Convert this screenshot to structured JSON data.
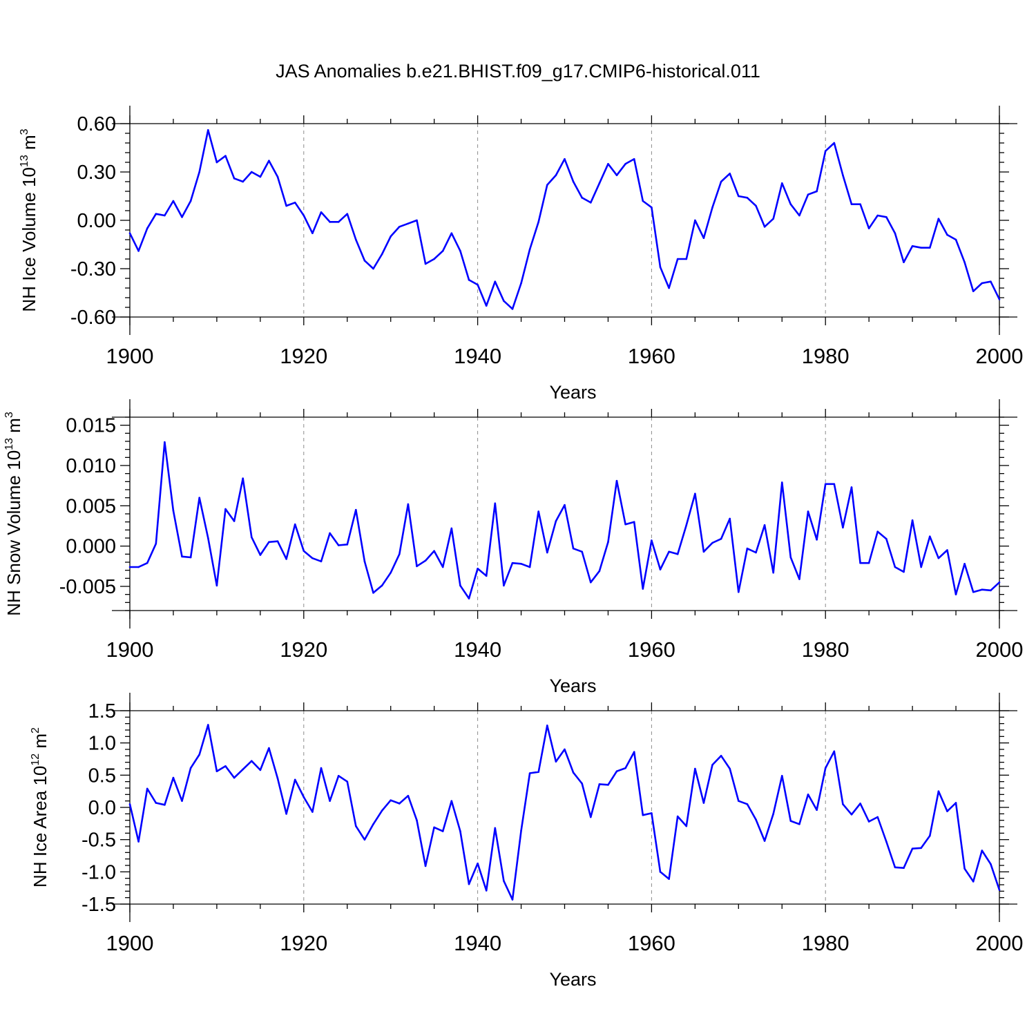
{
  "title": "JAS Anomalies b.e21.BHIST.f09_g17.CMIP6-historical.011",
  "chart_data": [
    {
      "type": "line",
      "name": "ice-volume",
      "ylabel": {
        "text": "NH Ice Volume 10",
        "exp1": "13",
        "mid": " m",
        "exp2": "3"
      },
      "xlabel": "Years",
      "xlim": [
        1900,
        2000
      ],
      "ylim": [
        -0.6,
        0.6
      ],
      "yticks": [
        -0.6,
        -0.3,
        0.0,
        0.3,
        0.6
      ],
      "ytick_labels": [
        "-0.60",
        "-0.30",
        "0.00",
        "0.30",
        "0.60"
      ],
      "xticks": [
        1900,
        1920,
        1940,
        1960,
        1980,
        2000
      ],
      "xtick_labels": [
        "1900",
        "1920",
        "1940",
        "1960",
        "1980",
        "2000"
      ],
      "x_start": 1900,
      "color": "#0000ff",
      "values": [
        -0.08,
        -0.19,
        -0.05,
        0.04,
        0.03,
        0.12,
        0.02,
        0.12,
        0.3,
        0.56,
        0.36,
        0.4,
        0.26,
        0.24,
        0.3,
        0.27,
        0.37,
        0.27,
        0.09,
        0.11,
        0.03,
        -0.08,
        0.05,
        -0.01,
        -0.01,
        0.04,
        -0.12,
        -0.25,
        -0.3,
        -0.21,
        -0.1,
        -0.04,
        -0.02,
        0.0,
        -0.27,
        -0.24,
        -0.19,
        -0.08,
        -0.19,
        -0.37,
        -0.4,
        -0.53,
        -0.38,
        -0.5,
        -0.55,
        -0.39,
        -0.18,
        -0.01,
        0.22,
        0.28,
        0.38,
        0.24,
        0.14,
        0.11,
        0.23,
        0.35,
        0.28,
        0.35,
        0.38,
        0.12,
        0.08,
        -0.29,
        -0.42,
        -0.24,
        -0.24,
        0.0,
        -0.11,
        0.08,
        0.24,
        0.29,
        0.15,
        0.14,
        0.09,
        -0.04,
        0.01,
        0.23,
        0.1,
        0.03,
        0.16,
        0.18,
        0.43,
        0.48,
        0.28,
        0.1,
        0.1,
        -0.05,
        0.03,
        0.02,
        -0.08,
        -0.26,
        -0.16,
        -0.17,
        -0.17,
        0.01,
        -0.09,
        -0.12,
        -0.26,
        -0.44,
        -0.39,
        -0.38,
        -0.49
      ]
    },
    {
      "type": "line",
      "name": "snow-volume",
      "ylabel": {
        "text": "NH Snow Volume 10",
        "exp1": "13",
        "mid": " m",
        "exp2": "3"
      },
      "xlabel": "Years",
      "xlim": [
        1900,
        2000
      ],
      "ylim": [
        -0.008,
        0.016
      ],
      "yticks": [
        -0.005,
        0.0,
        0.005,
        0.01,
        0.015
      ],
      "ytick_labels": [
        "-0.005",
        "0.000",
        "0.005",
        "0.010",
        "0.015"
      ],
      "xticks": [
        1900,
        1920,
        1940,
        1960,
        1980,
        2000
      ],
      "xtick_labels": [
        "1900",
        "1920",
        "1940",
        "1960",
        "1980",
        "2000"
      ],
      "x_start": 1900,
      "color": "#0000ff",
      "values": [
        -0.0026,
        -0.0026,
        -0.0021,
        0.0003,
        0.0129,
        0.0044,
        -0.0013,
        -0.0014,
        0.006,
        0.001,
        -0.0049,
        0.0046,
        0.0031,
        0.0084,
        0.0011,
        -0.0011,
        0.0005,
        0.0006,
        -0.0016,
        0.0027,
        -0.0006,
        -0.0015,
        -0.0019,
        0.0016,
        0.0001,
        0.0002,
        0.0045,
        -0.0019,
        -0.0058,
        -0.0049,
        -0.0033,
        -0.001,
        0.0052,
        -0.0025,
        -0.0018,
        -0.0006,
        -0.0026,
        0.0022,
        -0.0049,
        -0.0065,
        -0.0028,
        -0.0037,
        0.0053,
        -0.0049,
        -0.0021,
        -0.0022,
        -0.0026,
        0.0043,
        -0.0008,
        0.0031,
        0.0051,
        -0.0003,
        -0.0007,
        -0.0045,
        -0.0031,
        0.0005,
        0.0081,
        0.0027,
        0.003,
        -0.0053,
        0.0007,
        -0.0029,
        -0.0007,
        -0.001,
        0.0026,
        0.0065,
        -0.0007,
        0.0004,
        0.0009,
        0.0034,
        -0.0057,
        -0.0003,
        -0.0008,
        0.0026,
        -0.0033,
        0.0079,
        -0.0014,
        -0.0041,
        0.0043,
        0.0008,
        0.0077,
        0.0077,
        0.0023,
        0.0073,
        -0.0021,
        -0.0021,
        0.0018,
        0.0009,
        -0.0026,
        -0.0032,
        0.0032,
        -0.0026,
        0.0012,
        -0.0015,
        -0.0005,
        -0.006,
        -0.0022,
        -0.0057,
        -0.0054,
        -0.0055,
        -0.0045
      ]
    },
    {
      "type": "line",
      "name": "ice-area",
      "ylabel": {
        "text": "NH Ice Area 10",
        "exp1": "12",
        "mid": " m",
        "exp2": "2"
      },
      "xlabel": "Years",
      "xlim": [
        1900,
        2000
      ],
      "ylim": [
        -1.5,
        1.5
      ],
      "yticks": [
        -1.5,
        -1.0,
        -0.5,
        0.0,
        0.5,
        1.0,
        1.5
      ],
      "ytick_labels": [
        "-1.5",
        "-1.0",
        "-0.5",
        "0.0",
        "0.5",
        "1.0",
        "1.5"
      ],
      "xticks": [
        1900,
        1920,
        1940,
        1960,
        1980,
        2000
      ],
      "xtick_labels": [
        "1900",
        "1920",
        "1940",
        "1960",
        "1980",
        "2000"
      ],
      "x_start": 1900,
      "color": "#0000ff",
      "values": [
        0.05,
        -0.53,
        0.29,
        0.07,
        0.04,
        0.46,
        0.1,
        0.61,
        0.82,
        1.28,
        0.56,
        0.64,
        0.46,
        0.59,
        0.72,
        0.58,
        0.92,
        0.45,
        -0.1,
        0.43,
        0.16,
        -0.07,
        0.61,
        0.1,
        0.49,
        0.4,
        -0.29,
        -0.5,
        -0.26,
        -0.05,
        0.11,
        0.06,
        0.18,
        -0.2,
        -0.91,
        -0.31,
        -0.37,
        0.1,
        -0.37,
        -1.19,
        -0.87,
        -1.29,
        -0.32,
        -1.14,
        -1.43,
        -0.36,
        0.53,
        0.55,
        1.27,
        0.71,
        0.9,
        0.54,
        0.37,
        -0.15,
        0.36,
        0.35,
        0.56,
        0.61,
        0.86,
        -0.12,
        -0.09,
        -1.0,
        -1.11,
        -0.14,
        -0.29,
        0.6,
        0.07,
        0.66,
        0.8,
        0.6,
        0.1,
        0.05,
        -0.19,
        -0.52,
        -0.1,
        0.49,
        -0.21,
        -0.26,
        0.2,
        -0.04,
        0.61,
        0.87,
        0.05,
        -0.11,
        0.06,
        -0.22,
        -0.15,
        -0.53,
        -0.93,
        -0.94,
        -0.64,
        -0.63,
        -0.44,
        0.25,
        -0.06,
        0.07,
        -0.95,
        -1.15,
        -0.67,
        -0.88,
        -1.28
      ]
    }
  ]
}
